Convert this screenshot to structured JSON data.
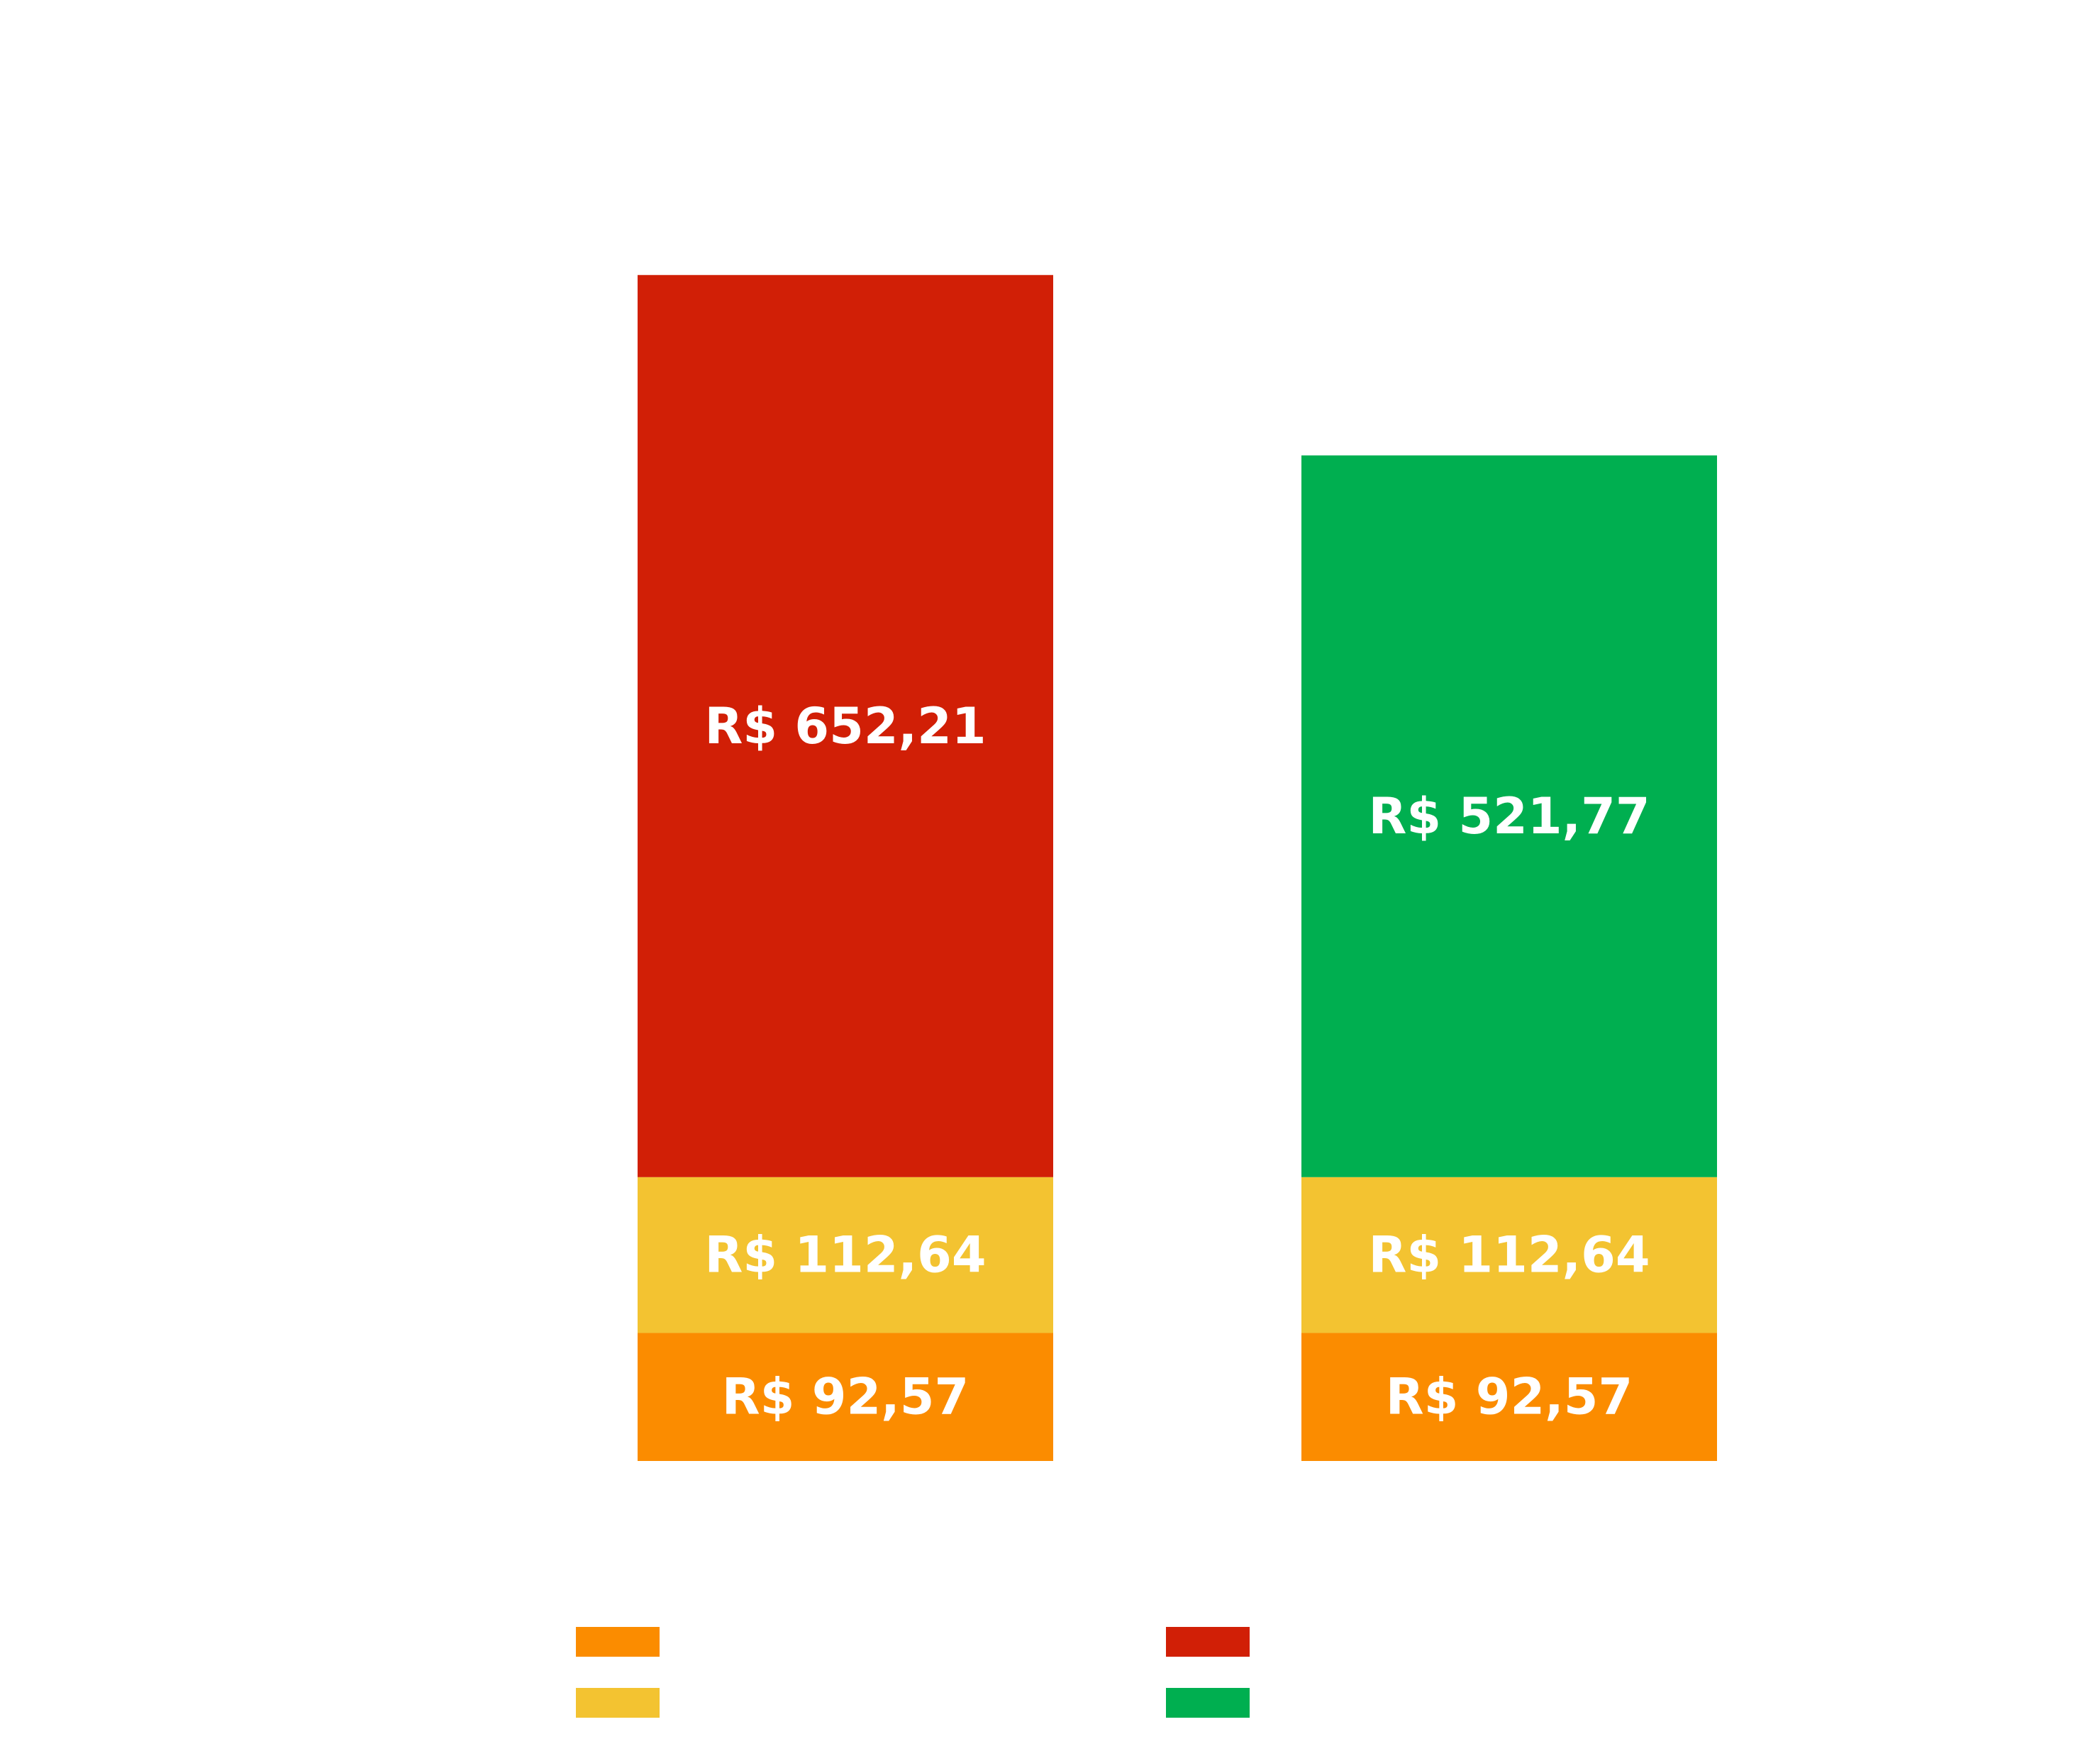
{
  "chart_data": {
    "type": "bar",
    "stacked": true,
    "categories": [
      "",
      ""
    ],
    "series": [
      {
        "color": "#FB8C00",
        "values": [
          92.57,
          92.57
        ],
        "labels": [
          "R$ 92,57",
          "R$ 92,57"
        ]
      },
      {
        "color": "#F3C331",
        "values": [
          112.64,
          112.64
        ],
        "labels": [
          "R$ 112,64",
          "R$ 112,64"
        ]
      },
      {
        "color": "#D11F06",
        "values": [
          652.21,
          0
        ],
        "labels": [
          "R$ 652,21",
          ""
        ]
      },
      {
        "color": "#00AF50",
        "values": [
          0,
          521.77
        ],
        "labels": [
          "",
          "R$ 521,77"
        ]
      }
    ],
    "ylim": [
      0,
      900
    ],
    "grid": false,
    "legend": {
      "position": "bottom",
      "entries": [
        {
          "color": "#FB8C00",
          "label": ""
        },
        {
          "color": "#F3C331",
          "label": ""
        },
        {
          "color": "#D11F06",
          "label": ""
        },
        {
          "color": "#00AF50",
          "label": ""
        }
      ]
    }
  }
}
